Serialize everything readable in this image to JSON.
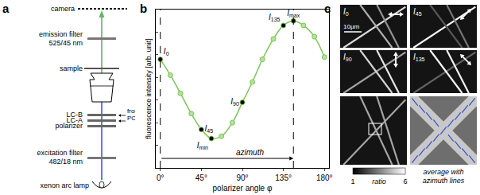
{
  "panel_labels": [
    "a",
    "b",
    "c"
  ],
  "diagram": {
    "camera": "camera",
    "emission_filter": [
      "emission filter",
      "525/45 nm"
    ],
    "sample": "sample",
    "liquid_crystals": [
      "LC-B",
      "LC-A",
      "polarizer"
    ],
    "control": [
      "from",
      "PC"
    ],
    "excitation_filter": [
      "excitation filter",
      "482/18 nm"
    ],
    "lamp": "xenon arc lamp"
  },
  "chart_data": {
    "type": "line",
    "x": [
      0,
      11,
      22,
      34,
      45,
      56,
      67,
      79,
      90,
      101,
      112,
      124,
      135,
      146,
      157,
      169,
      180
    ],
    "values": [
      48,
      41,
      33,
      24,
      17,
      13,
      14,
      20,
      29,
      38,
      48,
      57,
      63,
      65,
      63,
      58,
      49
    ],
    "color": "#7cc45a",
    "marker": "circle",
    "line_style": "solid",
    "xlabel": "polarizer angle φ",
    "ylabel": "fluorescence intensity [arb. unit]",
    "xlim": [
      -5,
      185
    ],
    "ylim": [
      0,
      70
    ],
    "xticks": [
      {
        "value": 0,
        "label": "0°"
      },
      {
        "value": 45,
        "label": "45°"
      },
      {
        "value": 90,
        "label": "90°"
      },
      {
        "value": 135,
        "label": "135°"
      },
      {
        "value": 180,
        "label": "180°"
      }
    ],
    "yticks": [
      10,
      20,
      30,
      40,
      50,
      60
    ],
    "tick_labels": "x",
    "grid": false,
    "points": [
      {
        "base": "I",
        "sub": "0",
        "x": 0,
        "y": 48
      },
      {
        "base": "I",
        "sub": "45",
        "x": 45,
        "y": 17
      },
      {
        "base": "I",
        "sub": "min",
        "x": 56,
        "y": 13
      },
      {
        "base": "I",
        "sub": "90",
        "x": 90,
        "y": 29
      },
      {
        "base": "I",
        "sub": "135",
        "x": 135,
        "y": 63
      },
      {
        "base": "I",
        "sub": "max",
        "x": 146,
        "y": 65
      }
    ],
    "vlines": [
      0,
      146
    ],
    "arrow": {
      "label": "azimuth",
      "from": 0,
      "to": 146
    }
  },
  "images": {
    "polarized": [
      {
        "base": "I",
        "sub": "0",
        "angle": 0
      },
      {
        "base": "I",
        "sub": "45",
        "angle": 45
      },
      {
        "base": "I",
        "sub": "90",
        "angle": 90
      },
      {
        "base": "I",
        "sub": "135",
        "angle": 135
      }
    ],
    "scale_bar": "10µm",
    "colorbar": {
      "label": "ratio",
      "range": [
        1,
        6
      ]
    },
    "caption": [
      "average with",
      "azimuth lines"
    ]
  }
}
